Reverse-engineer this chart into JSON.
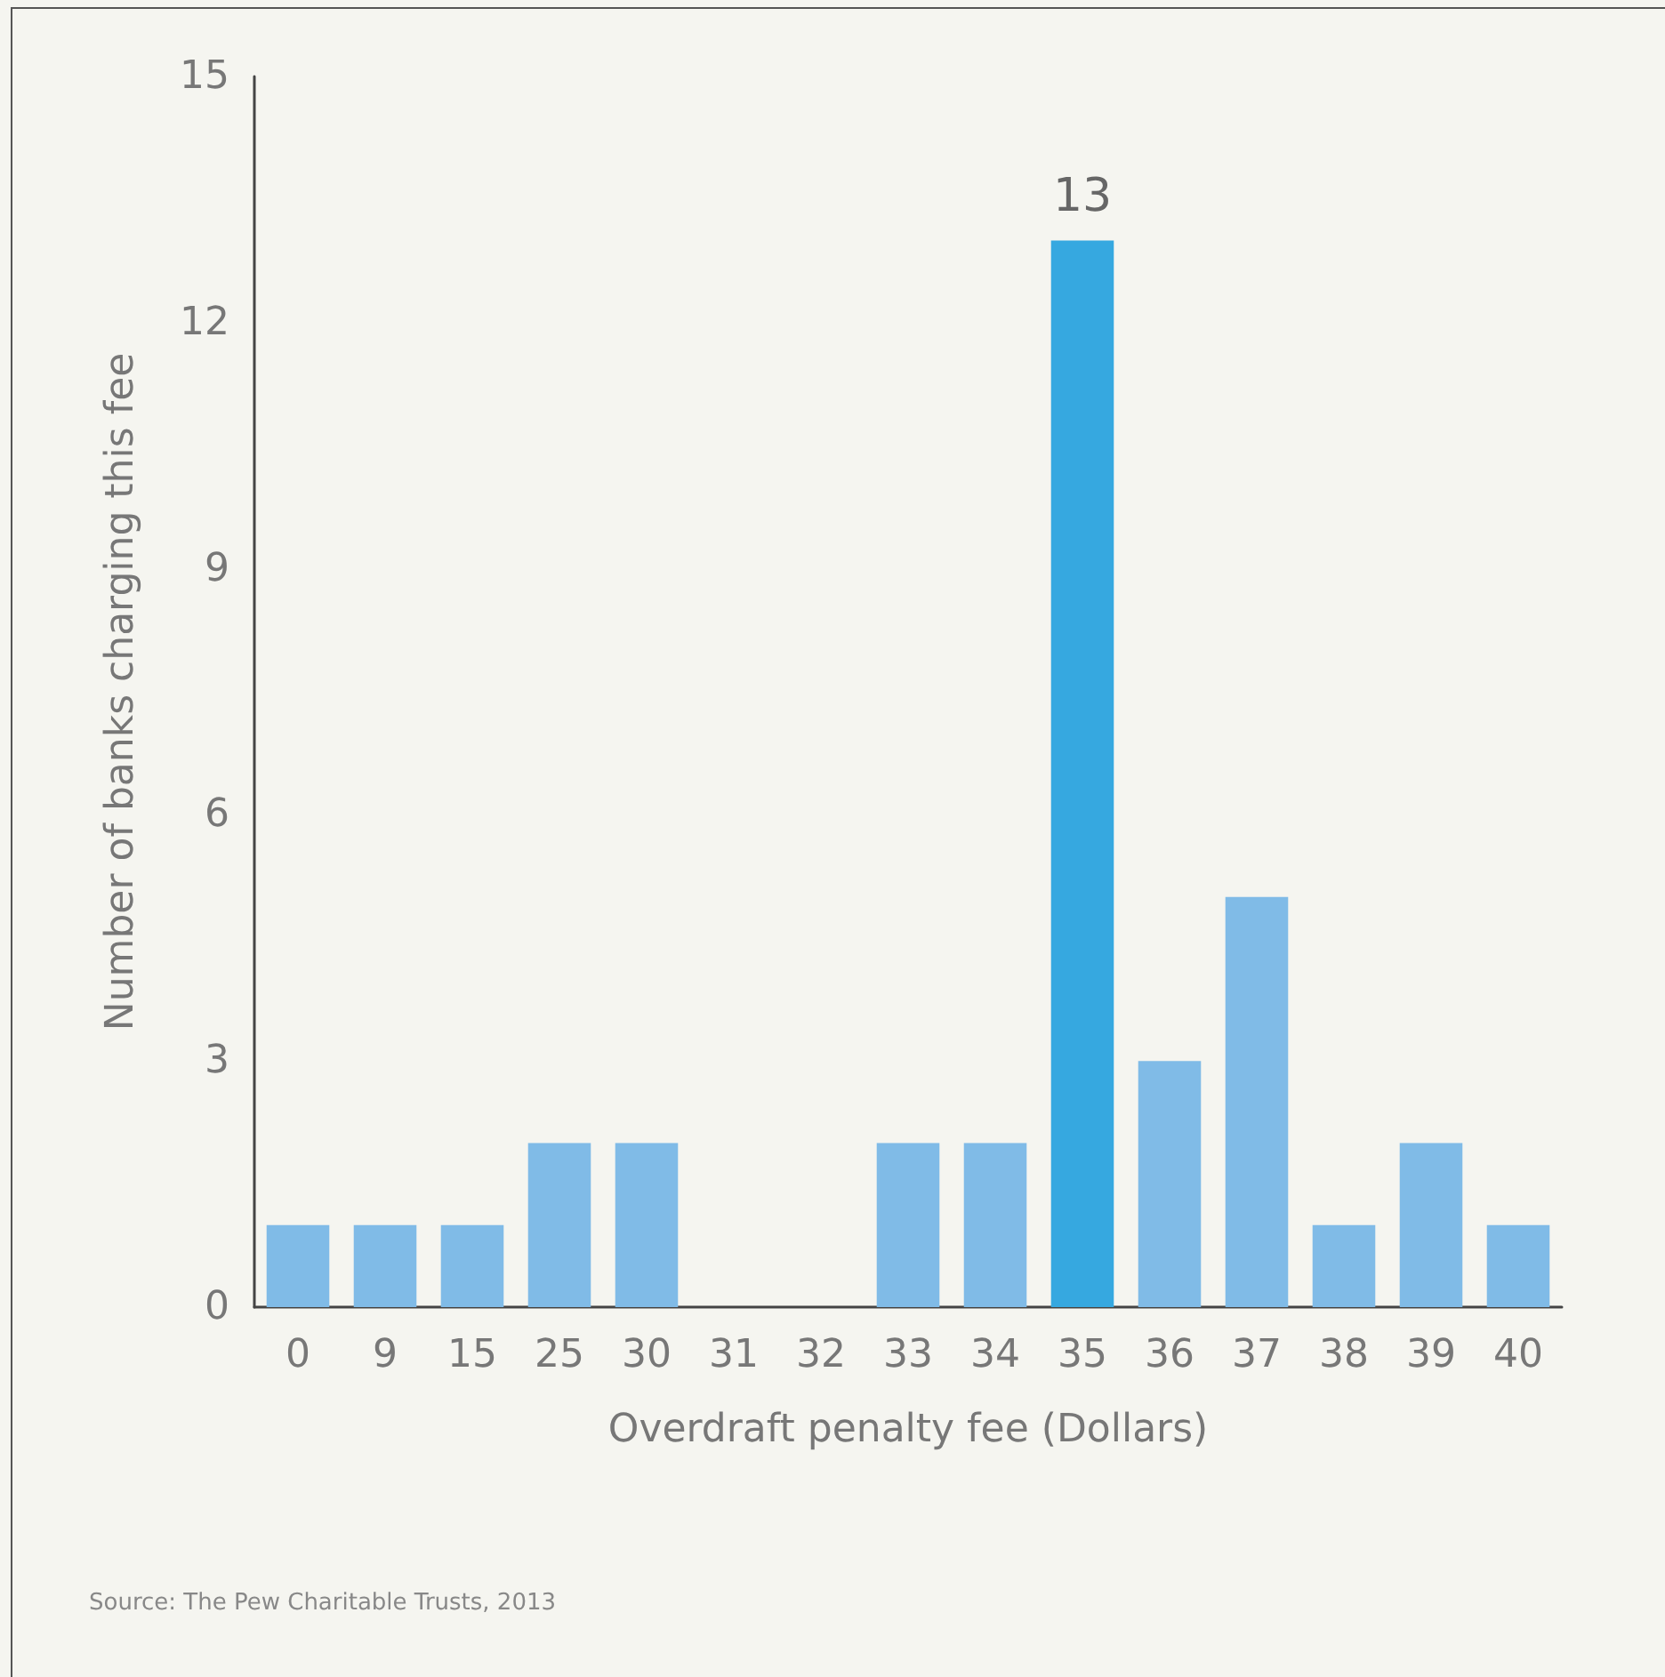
{
  "chart_data": {
    "type": "bar",
    "categories": [
      "0",
      "9",
      "15",
      "25",
      "30",
      "31",
      "32",
      "33",
      "34",
      "35",
      "36",
      "37",
      "38",
      "39",
      "40"
    ],
    "values": [
      1,
      1,
      1,
      2,
      2,
      0,
      0,
      2,
      2,
      13,
      3,
      5,
      1,
      2,
      1
    ],
    "colors": [
      "#80bbe7",
      "#80bbe7",
      "#80bbe7",
      "#80bbe7",
      "#80bbe7",
      "#80bbe7",
      "#80bbe7",
      "#80bbe7",
      "#80bbe7",
      "#36a8e0",
      "#80bbe7",
      "#80bbe7",
      "#80bbe7",
      "#80bbe7",
      "#80bbe7"
    ],
    "value_labels": [
      null,
      null,
      null,
      null,
      null,
      null,
      null,
      null,
      null,
      "13",
      null,
      null,
      null,
      null,
      null
    ],
    "xlabel": "Overdraft penalty fee (Dollars)",
    "ylabel": "Number of banks charging this fee",
    "ylim": [
      0,
      15
    ],
    "yticks": [
      0,
      3,
      6,
      9,
      12,
      15
    ],
    "grid": false,
    "annotations": [
      "Source: The Pew Charitable Trusts, 2013"
    ]
  }
}
